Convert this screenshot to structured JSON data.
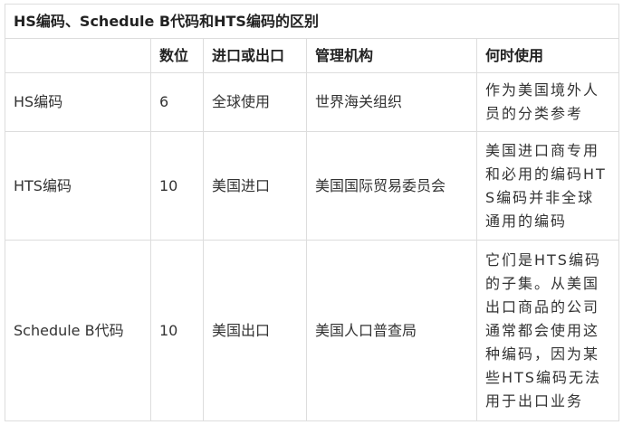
{
  "table": {
    "title": "HS编码、Schedule B代码和HTS编码的区别",
    "headers": [
      "",
      "数位",
      "进口或出口",
      "管理机构",
      "何时使用"
    ],
    "rows": [
      [
        "HS编码",
        "6",
        "全球使用",
        "世界海关组织",
        "作为美国境外人员的分类参考"
      ],
      [
        "HTS编码",
        "10",
        "美国进口",
        "美国国际贸易委员会",
        "美国进口商专用和必用的编码HTS编码并非全球通用的编码"
      ],
      [
        "Schedule B代码",
        "10",
        "美国出口",
        "美国人口普查局",
        "它们是HTS编码的子集。从美国出口商品的公司通常都会使用这种编码，因为某些HTS编码无法用于出口业务"
      ]
    ]
  }
}
